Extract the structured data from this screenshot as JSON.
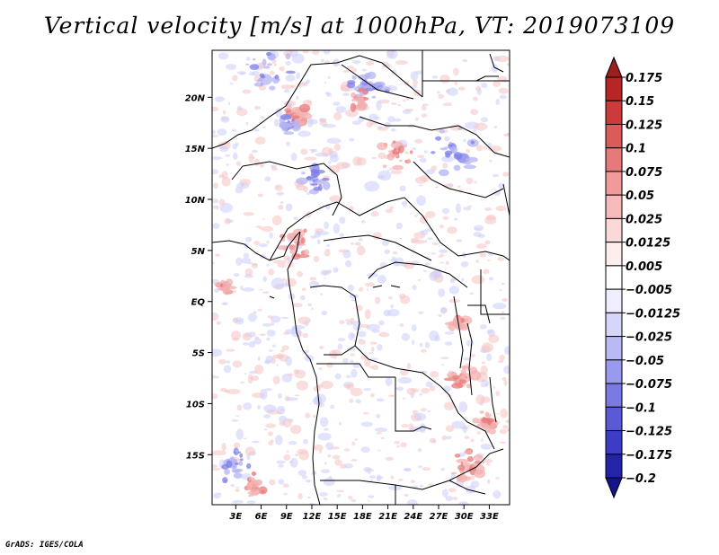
{
  "chart_data": {
    "type": "heatmap",
    "title": "Vertical velocity [m/s] at 1000hPa, VT: 2019073109",
    "x_ticks": [
      "3E",
      "6E",
      "9E",
      "12E",
      "15E",
      "18E",
      "21E",
      "24E",
      "27E",
      "30E",
      "33E"
    ],
    "x_tick_values": [
      3,
      6,
      9,
      12,
      15,
      18,
      21,
      24,
      27,
      30,
      33
    ],
    "y_ticks": [
      "20N",
      "15N",
      "10N",
      "5N",
      "EQ",
      "5S",
      "10S",
      "15S"
    ],
    "y_tick_values": [
      20,
      15,
      10,
      5,
      0,
      -5,
      -10,
      -15
    ],
    "xlim": [
      0.2,
      35.4
    ],
    "ylim": [
      -19.9,
      24.6
    ],
    "colorbar": {
      "labels": [
        "0.175",
        "0.15",
        "0.125",
        "0.1",
        "0.075",
        "0.05",
        "0.025",
        "0.0125",
        "0.005",
        "−0.005",
        "−0.0125",
        "−0.025",
        "−0.05",
        "−0.075",
        "−0.1",
        "−0.125",
        "−0.175",
        "−0.2"
      ],
      "colors": [
        "#9e1d1d",
        "#b82525",
        "#cc3b3b",
        "#db5a5a",
        "#e67a7a",
        "#f09a9a",
        "#f6baba",
        "#fbd9d9",
        "#fdeeee",
        "#ffffff",
        "#eeeefe",
        "#d6d6fb",
        "#b9b9f5",
        "#9999ee",
        "#7a7ae4",
        "#5a5ad6",
        "#3c3cc4",
        "#2424a8",
        "#14148c"
      ]
    }
  },
  "footer_text": "GrADS: IGES/COLA"
}
